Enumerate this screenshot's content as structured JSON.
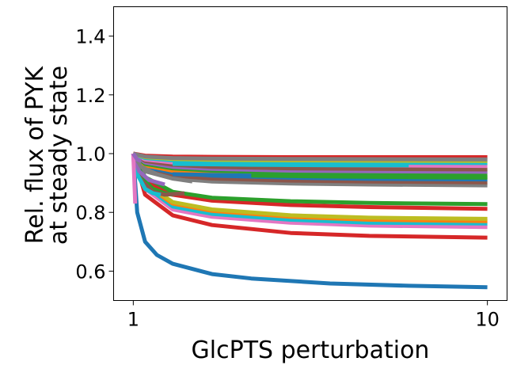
{
  "chart_data": {
    "type": "line",
    "xlabel": "GlcPTS perturbation",
    "ylabel_lines": [
      "Rel. flux of PYK",
      "at steady state"
    ],
    "xlim": [
      0.5,
      10.5
    ],
    "ylim": [
      0.5,
      1.5
    ],
    "x_ticks": [
      1,
      10
    ],
    "x_tick_labels": [
      "1",
      "10"
    ],
    "y_ticks": [
      0.6,
      0.8,
      1.0,
      1.2,
      1.4
    ],
    "y_tick_labels": [
      "0.6",
      "0.8",
      "1.0",
      "1.2",
      "1.4"
    ],
    "grid": false,
    "legend": "none",
    "series": [
      {
        "color": "#1f77b4",
        "points": [
          [
            1,
            1.0
          ],
          [
            1.1,
            0.8
          ],
          [
            1.3,
            0.7
          ],
          [
            1.6,
            0.655
          ],
          [
            2,
            0.625
          ],
          [
            3,
            0.59
          ],
          [
            4,
            0.575
          ],
          [
            6,
            0.558
          ],
          [
            8,
            0.55
          ],
          [
            10,
            0.545
          ]
        ]
      },
      {
        "color": "#d62728",
        "points": [
          [
            1,
            1.0
          ],
          [
            1.3,
            0.86
          ],
          [
            2,
            0.79
          ],
          [
            3,
            0.757
          ],
          [
            5,
            0.73
          ],
          [
            7,
            0.72
          ],
          [
            10,
            0.714
          ]
        ]
      },
      {
        "color": "#e377c2",
        "points": [
          [
            1,
            1.0
          ],
          [
            1.3,
            0.88
          ],
          [
            2,
            0.81
          ],
          [
            3,
            0.785
          ],
          [
            5,
            0.765
          ],
          [
            7,
            0.755
          ],
          [
            10,
            0.75
          ]
        ]
      },
      {
        "color": "#17becf",
        "points": [
          [
            1,
            1.0
          ],
          [
            1.3,
            0.89
          ],
          [
            2,
            0.82
          ],
          [
            3,
            0.795
          ],
          [
            5,
            0.775
          ],
          [
            7,
            0.765
          ],
          [
            10,
            0.762
          ]
        ]
      },
      {
        "color": "#ff7f0e",
        "points": [
          [
            1,
            1.0
          ],
          [
            1.3,
            0.895
          ],
          [
            2,
            0.83
          ],
          [
            3,
            0.805
          ],
          [
            5,
            0.785
          ],
          [
            7,
            0.775
          ],
          [
            10,
            0.77
          ]
        ]
      },
      {
        "color": "#bcbd22",
        "points": [
          [
            1,
            1.0
          ],
          [
            1.3,
            0.9
          ],
          [
            2,
            0.835
          ],
          [
            3,
            0.81
          ],
          [
            5,
            0.79
          ],
          [
            7,
            0.782
          ],
          [
            10,
            0.778
          ]
        ]
      },
      {
        "color": "#d62728",
        "points": [
          [
            1,
            1.0
          ],
          [
            1.3,
            0.91
          ],
          [
            2,
            0.86
          ],
          [
            3,
            0.84
          ],
          [
            5,
            0.825
          ],
          [
            7,
            0.818
          ],
          [
            10,
            0.812
          ]
        ]
      },
      {
        "color": "#2ca02c",
        "points": [
          [
            1,
            1.0
          ],
          [
            1.3,
            0.92
          ],
          [
            2,
            0.87
          ],
          [
            3,
            0.85
          ],
          [
            5,
            0.838
          ],
          [
            7,
            0.832
          ],
          [
            10,
            0.828
          ]
        ]
      },
      {
        "color": "#7f7f7f",
        "points": [
          [
            1,
            1.0
          ],
          [
            1.3,
            0.94
          ],
          [
            2,
            0.915
          ],
          [
            3,
            0.905
          ],
          [
            5,
            0.898
          ],
          [
            7,
            0.895
          ],
          [
            10,
            0.892
          ]
        ]
      },
      {
        "color": "#8c564b",
        "points": [
          [
            1,
            1.0
          ],
          [
            1.3,
            0.95
          ],
          [
            2,
            0.925
          ],
          [
            3,
            0.915
          ],
          [
            5,
            0.908
          ],
          [
            7,
            0.905
          ],
          [
            10,
            0.902
          ]
        ]
      },
      {
        "color": "#1f77b4",
        "points": [
          [
            1,
            1.0
          ],
          [
            1.3,
            0.955
          ],
          [
            2,
            0.935
          ],
          [
            3,
            0.925
          ],
          [
            5,
            0.918
          ],
          [
            7,
            0.914
          ],
          [
            10,
            0.912
          ]
        ]
      },
      {
        "color": "#ff7f0e",
        "points": [
          [
            1,
            1.0
          ],
          [
            1.3,
            0.96
          ],
          [
            2,
            0.942
          ],
          [
            3,
            0.932
          ],
          [
            5,
            0.925
          ],
          [
            7,
            0.922
          ],
          [
            10,
            0.92
          ]
        ]
      },
      {
        "color": "#2ca02c",
        "points": [
          [
            1,
            1.0
          ],
          [
            1.3,
            0.965
          ],
          [
            2,
            0.95
          ],
          [
            3,
            0.942
          ],
          [
            5,
            0.935
          ],
          [
            7,
            0.932
          ],
          [
            10,
            0.93
          ]
        ]
      },
      {
        "color": "#9467bd",
        "points": [
          [
            1,
            1.0
          ],
          [
            1.3,
            0.97
          ],
          [
            2,
            0.955
          ],
          [
            3,
            0.948
          ],
          [
            5,
            0.942
          ],
          [
            7,
            0.94
          ],
          [
            10,
            0.938
          ]
        ]
      },
      {
        "color": "#8c564b",
        "points": [
          [
            1,
            1.0
          ],
          [
            1.3,
            0.975
          ],
          [
            2,
            0.962
          ],
          [
            3,
            0.955
          ],
          [
            5,
            0.95
          ],
          [
            7,
            0.948
          ],
          [
            10,
            0.946
          ]
        ]
      },
      {
        "color": "#e377c2",
        "points": [
          [
            1,
            1.0
          ],
          [
            1.3,
            0.98
          ],
          [
            2,
            0.97
          ],
          [
            3,
            0.965
          ],
          [
            5,
            0.962
          ],
          [
            7,
            0.96
          ],
          [
            10,
            0.958
          ]
        ]
      },
      {
        "color": "#17becf",
        "points": [
          [
            1,
            1.0
          ],
          [
            1.3,
            0.985
          ],
          [
            2,
            0.977
          ],
          [
            3,
            0.973
          ],
          [
            5,
            0.97
          ],
          [
            7,
            0.969
          ],
          [
            10,
            0.968
          ]
        ]
      },
      {
        "color": "#bcbd22",
        "points": [
          [
            1,
            1.0
          ],
          [
            1.3,
            0.988
          ],
          [
            2,
            0.982
          ],
          [
            3,
            0.979
          ],
          [
            5,
            0.977
          ],
          [
            7,
            0.976
          ],
          [
            10,
            0.975
          ]
        ]
      },
      {
        "color": "#d62728",
        "points": [
          [
            1,
            1.0
          ],
          [
            1.3,
            0.993
          ],
          [
            2,
            0.99
          ],
          [
            3,
            0.989
          ],
          [
            5,
            0.988
          ],
          [
            7,
            0.988
          ],
          [
            10,
            0.988
          ]
        ]
      },
      {
        "color": "#7f7f7f",
        "points": [
          [
            1,
            1.0
          ],
          [
            1.3,
            0.99
          ],
          [
            2,
            0.985
          ],
          [
            3,
            0.983
          ],
          [
            5,
            0.982
          ],
          [
            7,
            0.981
          ],
          [
            10,
            0.98
          ]
        ]
      },
      {
        "color": "#2ca02c",
        "points": [
          [
            1,
            1.0
          ],
          [
            1.2,
            0.92
          ],
          [
            1.5,
            0.88
          ],
          [
            1.8,
            0.865
          ],
          [
            2,
            0.86
          ]
        ]
      },
      {
        "color": "#8c564b",
        "points": [
          [
            1,
            1.0
          ],
          [
            1.2,
            0.91
          ],
          [
            1.5,
            0.87
          ],
          [
            1.8,
            0.86
          ],
          [
            2.3,
            0.865
          ]
        ]
      },
      {
        "color": "#17becf",
        "points": [
          [
            1,
            1.0
          ],
          [
            1.1,
            0.93
          ],
          [
            1.3,
            0.88
          ],
          [
            1.5,
            0.865
          ],
          [
            1.7,
            0.86
          ]
        ]
      },
      {
        "color": "#9467bd",
        "points": [
          [
            1,
            1.0
          ],
          [
            1.15,
            0.94
          ],
          [
            1.4,
            0.91
          ],
          [
            1.8,
            0.895
          ]
        ]
      },
      {
        "color": "#7f7f7f",
        "points": [
          [
            1,
            1.0
          ],
          [
            1.2,
            0.955
          ],
          [
            1.6,
            0.93
          ],
          [
            2,
            0.915
          ],
          [
            2.5,
            0.905
          ]
        ]
      },
      {
        "color": "#e377c2",
        "points": [
          [
            1,
            1.0
          ],
          [
            1.05,
            0.83
          ]
        ]
      },
      {
        "color": "#1f77b4",
        "points": [
          [
            2,
            0.93
          ],
          [
            4,
            0.925
          ],
          [
            6,
            0.922
          ],
          [
            8,
            0.92
          ]
        ]
      },
      {
        "color": "#2ca02c",
        "points": [
          [
            4,
            0.925
          ],
          [
            6,
            0.922
          ],
          [
            8,
            0.92
          ],
          [
            10,
            0.918
          ]
        ]
      },
      {
        "color": "#17becf",
        "points": [
          [
            2,
            0.965
          ],
          [
            4,
            0.962
          ],
          [
            6,
            0.96
          ],
          [
            8,
            0.96
          ]
        ]
      },
      {
        "color": "#9467bd",
        "points": [
          [
            1,
            1.0
          ],
          [
            1.1,
            0.98
          ],
          [
            1.2,
            0.975
          ]
        ]
      }
    ]
  }
}
